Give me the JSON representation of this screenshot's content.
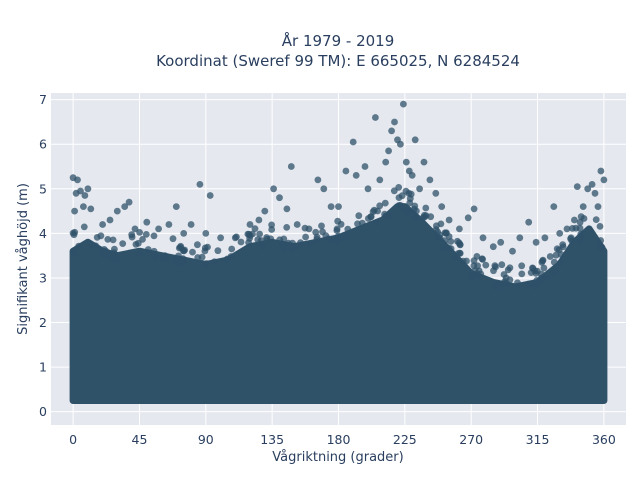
{
  "chart_data": {
    "type": "scatter",
    "title_lines": [
      "År 1979 - 2019",
      "Koordinat (Sweref 99 TM): E 665025, N 6284524"
    ],
    "xlabel": "Vågriktning (grader)",
    "ylabel": "Signifikant våghöjd (m)",
    "xlim": [
      -15,
      375
    ],
    "ylim": [
      -0.3,
      7.15
    ],
    "x_ticks": [
      0,
      45,
      90,
      135,
      180,
      225,
      270,
      315,
      360
    ],
    "y_ticks": [
      0,
      1,
      2,
      3,
      4,
      5,
      6,
      7
    ],
    "grid": true,
    "legend": "none",
    "colors": {
      "marker": "#2f5269",
      "plot_background": "#e5e8ef",
      "grid": "#ffffff",
      "text": "#2a3f5f"
    },
    "dense_band_envelope": {
      "x": [
        0,
        10,
        20,
        30,
        45,
        60,
        75,
        90,
        105,
        120,
        135,
        150,
        165,
        180,
        195,
        210,
        220,
        225,
        235,
        250,
        270,
        285,
        300,
        315,
        330,
        340,
        350,
        360
      ],
      "y_upper": [
        3.6,
        3.8,
        3.6,
        3.5,
        3.6,
        3.5,
        3.4,
        3.3,
        3.4,
        3.7,
        3.8,
        3.7,
        3.8,
        3.9,
        4.1,
        4.3,
        4.6,
        4.6,
        4.3,
        3.8,
        3.1,
        2.9,
        2.8,
        2.9,
        3.3,
        3.8,
        4.1,
        3.6
      ],
      "y_lower": 0.25
    },
    "outliers": [
      {
        "x": 0,
        "y": 5.25
      },
      {
        "x": 1,
        "y": 4.5
      },
      {
        "x": 3,
        "y": 5.2
      },
      {
        "x": 2,
        "y": 4.9
      },
      {
        "x": 5,
        "y": 4.95
      },
      {
        "x": 8,
        "y": 4.85
      },
      {
        "x": 10,
        "y": 5.0
      },
      {
        "x": 7,
        "y": 4.6
      },
      {
        "x": 12,
        "y": 4.55
      },
      {
        "x": 20,
        "y": 4.2
      },
      {
        "x": 25,
        "y": 4.3
      },
      {
        "x": 30,
        "y": 4.5
      },
      {
        "x": 35,
        "y": 4.6
      },
      {
        "x": 38,
        "y": 4.7
      },
      {
        "x": 42,
        "y": 4.1
      },
      {
        "x": 50,
        "y": 4.25
      },
      {
        "x": 58,
        "y": 4.1
      },
      {
        "x": 65,
        "y": 4.2
      },
      {
        "x": 70,
        "y": 4.6
      },
      {
        "x": 75,
        "y": 4.0
      },
      {
        "x": 80,
        "y": 4.2
      },
      {
        "x": 86,
        "y": 5.1
      },
      {
        "x": 90,
        "y": 4.0
      },
      {
        "x": 93,
        "y": 4.85
      },
      {
        "x": 100,
        "y": 3.9
      },
      {
        "x": 110,
        "y": 3.9
      },
      {
        "x": 120,
        "y": 4.2
      },
      {
        "x": 126,
        "y": 4.3
      },
      {
        "x": 130,
        "y": 4.5
      },
      {
        "x": 136,
        "y": 5.0
      },
      {
        "x": 140,
        "y": 4.8
      },
      {
        "x": 145,
        "y": 4.55
      },
      {
        "x": 148,
        "y": 5.5
      },
      {
        "x": 152,
        "y": 4.2
      },
      {
        "x": 160,
        "y": 4.1
      },
      {
        "x": 166,
        "y": 5.2
      },
      {
        "x": 170,
        "y": 5.0
      },
      {
        "x": 175,
        "y": 4.6
      },
      {
        "x": 180,
        "y": 4.6
      },
      {
        "x": 185,
        "y": 5.4
      },
      {
        "x": 190,
        "y": 6.05
      },
      {
        "x": 192,
        "y": 5.3
      },
      {
        "x": 198,
        "y": 5.5
      },
      {
        "x": 200,
        "y": 5.0
      },
      {
        "x": 205,
        "y": 6.6
      },
      {
        "x": 208,
        "y": 5.2
      },
      {
        "x": 212,
        "y": 5.6
      },
      {
        "x": 214,
        "y": 5.85
      },
      {
        "x": 216,
        "y": 6.3
      },
      {
        "x": 218,
        "y": 6.5
      },
      {
        "x": 220,
        "y": 6.1
      },
      {
        "x": 222,
        "y": 6.0
      },
      {
        "x": 224,
        "y": 6.9
      },
      {
        "x": 226,
        "y": 5.6
      },
      {
        "x": 228,
        "y": 5.4
      },
      {
        "x": 230,
        "y": 5.3
      },
      {
        "x": 232,
        "y": 6.1
      },
      {
        "x": 235,
        "y": 5.0
      },
      {
        "x": 238,
        "y": 5.6
      },
      {
        "x": 242,
        "y": 5.2
      },
      {
        "x": 246,
        "y": 4.9
      },
      {
        "x": 250,
        "y": 4.6
      },
      {
        "x": 255,
        "y": 4.3
      },
      {
        "x": 262,
        "y": 4.1
      },
      {
        "x": 268,
        "y": 4.35
      },
      {
        "x": 272,
        "y": 4.55
      },
      {
        "x": 278,
        "y": 3.9
      },
      {
        "x": 285,
        "y": 3.7
      },
      {
        "x": 290,
        "y": 3.8
      },
      {
        "x": 298,
        "y": 3.6
      },
      {
        "x": 303,
        "y": 3.9
      },
      {
        "x": 309,
        "y": 4.25
      },
      {
        "x": 314,
        "y": 3.8
      },
      {
        "x": 320,
        "y": 3.9
      },
      {
        "x": 326,
        "y": 4.6
      },
      {
        "x": 330,
        "y": 4.0
      },
      {
        "x": 335,
        "y": 4.1
      },
      {
        "x": 340,
        "y": 4.3
      },
      {
        "x": 342,
        "y": 5.05
      },
      {
        "x": 346,
        "y": 4.6
      },
      {
        "x": 349,
        "y": 5.0
      },
      {
        "x": 352,
        "y": 5.1
      },
      {
        "x": 354,
        "y": 4.9
      },
      {
        "x": 356,
        "y": 4.6
      },
      {
        "x": 358,
        "y": 5.4
      },
      {
        "x": 360,
        "y": 5.2
      }
    ]
  }
}
